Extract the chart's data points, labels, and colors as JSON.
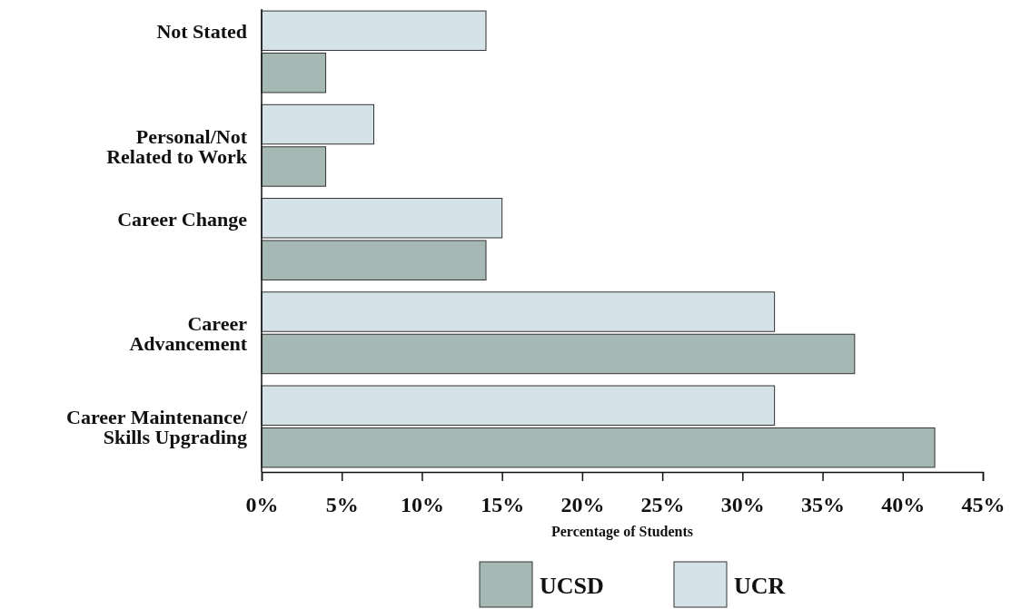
{
  "chart_data": {
    "type": "bar",
    "orientation": "horizontal",
    "xlabel": "Percentage of Students",
    "categories": [
      "Not Stated",
      "Personal/Not\nRelated to Work",
      "Career Change",
      "Career\nAdvancement",
      "Career Maintenance/\nSkills Upgrading"
    ],
    "series": [
      {
        "name": "UCSD",
        "color": "#a6b8b4",
        "values": [
          4,
          4,
          14,
          37,
          42
        ]
      },
      {
        "name": "UCR",
        "color": "#d5e3e8",
        "values": [
          14,
          7,
          15,
          32,
          32
        ]
      }
    ],
    "xlim": [
      0,
      45
    ],
    "xticks": [
      {
        "value": 0,
        "label": "0%"
      },
      {
        "value": 5,
        "label": "5%"
      },
      {
        "value": 10,
        "label": "10%"
      },
      {
        "value": 15,
        "label": "15%"
      },
      {
        "value": 20,
        "label": "20%"
      },
      {
        "value": 25,
        "label": "25%"
      },
      {
        "value": 30,
        "label": "30%"
      },
      {
        "value": 35,
        "label": "35%"
      },
      {
        "value": 40,
        "label": "40%"
      },
      {
        "value": 45,
        "label": "45%"
      }
    ],
    "grid": false,
    "legend": "bottom"
  }
}
